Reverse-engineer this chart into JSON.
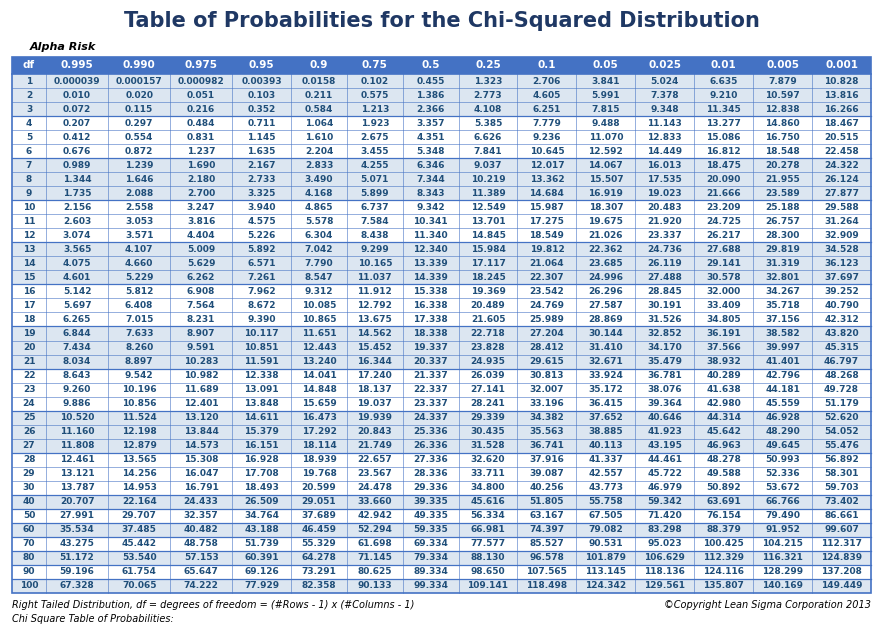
{
  "title": "Table of Probabilities for the Chi-Squared Distribution",
  "alpha_risk_label": "Alpha Risk",
  "headers": [
    "df",
    "0.995",
    "0.990",
    "0.975",
    "0.95",
    "0.9",
    "0.75",
    "0.5",
    "0.25",
    "0.1",
    "0.05",
    "0.025",
    "0.01",
    "0.005",
    "0.001"
  ],
  "rows": [
    [
      1,
      "0.000039",
      "0.000157",
      "0.000982",
      "0.00393",
      "0.0158",
      "0.102",
      "0.455",
      "1.323",
      "2.706",
      "3.841",
      "5.024",
      "6.635",
      "7.879",
      "10.828"
    ],
    [
      2,
      "0.010",
      "0.020",
      "0.051",
      "0.103",
      "0.211",
      "0.575",
      "1.386",
      "2.773",
      "4.605",
      "5.991",
      "7.378",
      "9.210",
      "10.597",
      "13.816"
    ],
    [
      3,
      "0.072",
      "0.115",
      "0.216",
      "0.352",
      "0.584",
      "1.213",
      "2.366",
      "4.108",
      "6.251",
      "7.815",
      "9.348",
      "11.345",
      "12.838",
      "16.266"
    ],
    [
      4,
      "0.207",
      "0.297",
      "0.484",
      "0.711",
      "1.064",
      "1.923",
      "3.357",
      "5.385",
      "7.779",
      "9.488",
      "11.143",
      "13.277",
      "14.860",
      "18.467"
    ],
    [
      5,
      "0.412",
      "0.554",
      "0.831",
      "1.145",
      "1.610",
      "2.675",
      "4.351",
      "6.626",
      "9.236",
      "11.070",
      "12.833",
      "15.086",
      "16.750",
      "20.515"
    ],
    [
      6,
      "0.676",
      "0.872",
      "1.237",
      "1.635",
      "2.204",
      "3.455",
      "5.348",
      "7.841",
      "10.645",
      "12.592",
      "14.449",
      "16.812",
      "18.548",
      "22.458"
    ],
    [
      7,
      "0.989",
      "1.239",
      "1.690",
      "2.167",
      "2.833",
      "4.255",
      "6.346",
      "9.037",
      "12.017",
      "14.067",
      "16.013",
      "18.475",
      "20.278",
      "24.322"
    ],
    [
      8,
      "1.344",
      "1.646",
      "2.180",
      "2.733",
      "3.490",
      "5.071",
      "7.344",
      "10.219",
      "13.362",
      "15.507",
      "17.535",
      "20.090",
      "21.955",
      "26.124"
    ],
    [
      9,
      "1.735",
      "2.088",
      "2.700",
      "3.325",
      "4.168",
      "5.899",
      "8.343",
      "11.389",
      "14.684",
      "16.919",
      "19.023",
      "21.666",
      "23.589",
      "27.877"
    ],
    [
      10,
      "2.156",
      "2.558",
      "3.247",
      "3.940",
      "4.865",
      "6.737",
      "9.342",
      "12.549",
      "15.987",
      "18.307",
      "20.483",
      "23.209",
      "25.188",
      "29.588"
    ],
    [
      11,
      "2.603",
      "3.053",
      "3.816",
      "4.575",
      "5.578",
      "7.584",
      "10.341",
      "13.701",
      "17.275",
      "19.675",
      "21.920",
      "24.725",
      "26.757",
      "31.264"
    ],
    [
      12,
      "3.074",
      "3.571",
      "4.404",
      "5.226",
      "6.304",
      "8.438",
      "11.340",
      "14.845",
      "18.549",
      "21.026",
      "23.337",
      "26.217",
      "28.300",
      "32.909"
    ],
    [
      13,
      "3.565",
      "4.107",
      "5.009",
      "5.892",
      "7.042",
      "9.299",
      "12.340",
      "15.984",
      "19.812",
      "22.362",
      "24.736",
      "27.688",
      "29.819",
      "34.528"
    ],
    [
      14,
      "4.075",
      "4.660",
      "5.629",
      "6.571",
      "7.790",
      "10.165",
      "13.339",
      "17.117",
      "21.064",
      "23.685",
      "26.119",
      "29.141",
      "31.319",
      "36.123"
    ],
    [
      15,
      "4.601",
      "5.229",
      "6.262",
      "7.261",
      "8.547",
      "11.037",
      "14.339",
      "18.245",
      "22.307",
      "24.996",
      "27.488",
      "30.578",
      "32.801",
      "37.697"
    ],
    [
      16,
      "5.142",
      "5.812",
      "6.908",
      "7.962",
      "9.312",
      "11.912",
      "15.338",
      "19.369",
      "23.542",
      "26.296",
      "28.845",
      "32.000",
      "34.267",
      "39.252"
    ],
    [
      17,
      "5.697",
      "6.408",
      "7.564",
      "8.672",
      "10.085",
      "12.792",
      "16.338",
      "20.489",
      "24.769",
      "27.587",
      "30.191",
      "33.409",
      "35.718",
      "40.790"
    ],
    [
      18,
      "6.265",
      "7.015",
      "8.231",
      "9.390",
      "10.865",
      "13.675",
      "17.338",
      "21.605",
      "25.989",
      "28.869",
      "31.526",
      "34.805",
      "37.156",
      "42.312"
    ],
    [
      19,
      "6.844",
      "7.633",
      "8.907",
      "10.117",
      "11.651",
      "14.562",
      "18.338",
      "22.718",
      "27.204",
      "30.144",
      "32.852",
      "36.191",
      "38.582",
      "43.820"
    ],
    [
      20,
      "7.434",
      "8.260",
      "9.591",
      "10.851",
      "12.443",
      "15.452",
      "19.337",
      "23.828",
      "28.412",
      "31.410",
      "34.170",
      "37.566",
      "39.997",
      "45.315"
    ],
    [
      21,
      "8.034",
      "8.897",
      "10.283",
      "11.591",
      "13.240",
      "16.344",
      "20.337",
      "24.935",
      "29.615",
      "32.671",
      "35.479",
      "38.932",
      "41.401",
      "46.797"
    ],
    [
      22,
      "8.643",
      "9.542",
      "10.982",
      "12.338",
      "14.041",
      "17.240",
      "21.337",
      "26.039",
      "30.813",
      "33.924",
      "36.781",
      "40.289",
      "42.796",
      "48.268"
    ],
    [
      23,
      "9.260",
      "10.196",
      "11.689",
      "13.091",
      "14.848",
      "18.137",
      "22.337",
      "27.141",
      "32.007",
      "35.172",
      "38.076",
      "41.638",
      "44.181",
      "49.728"
    ],
    [
      24,
      "9.886",
      "10.856",
      "12.401",
      "13.848",
      "15.659",
      "19.037",
      "23.337",
      "28.241",
      "33.196",
      "36.415",
      "39.364",
      "42.980",
      "45.559",
      "51.179"
    ],
    [
      25,
      "10.520",
      "11.524",
      "13.120",
      "14.611",
      "16.473",
      "19.939",
      "24.337",
      "29.339",
      "34.382",
      "37.652",
      "40.646",
      "44.314",
      "46.928",
      "52.620"
    ],
    [
      26,
      "11.160",
      "12.198",
      "13.844",
      "15.379",
      "17.292",
      "20.843",
      "25.336",
      "30.435",
      "35.563",
      "38.885",
      "41.923",
      "45.642",
      "48.290",
      "54.052"
    ],
    [
      27,
      "11.808",
      "12.879",
      "14.573",
      "16.151",
      "18.114",
      "21.749",
      "26.336",
      "31.528",
      "36.741",
      "40.113",
      "43.195",
      "46.963",
      "49.645",
      "55.476"
    ],
    [
      28,
      "12.461",
      "13.565",
      "15.308",
      "16.928",
      "18.939",
      "22.657",
      "27.336",
      "32.620",
      "37.916",
      "41.337",
      "44.461",
      "48.278",
      "50.993",
      "56.892"
    ],
    [
      29,
      "13.121",
      "14.256",
      "16.047",
      "17.708",
      "19.768",
      "23.567",
      "28.336",
      "33.711",
      "39.087",
      "42.557",
      "45.722",
      "49.588",
      "52.336",
      "58.301"
    ],
    [
      30,
      "13.787",
      "14.953",
      "16.791",
      "18.493",
      "20.599",
      "24.478",
      "29.336",
      "34.800",
      "40.256",
      "43.773",
      "46.979",
      "50.892",
      "53.672",
      "59.703"
    ],
    [
      40,
      "20.707",
      "22.164",
      "24.433",
      "26.509",
      "29.051",
      "33.660",
      "39.335",
      "45.616",
      "51.805",
      "55.758",
      "59.342",
      "63.691",
      "66.766",
      "73.402"
    ],
    [
      50,
      "27.991",
      "29.707",
      "32.357",
      "34.764",
      "37.689",
      "42.942",
      "49.335",
      "56.334",
      "63.167",
      "67.505",
      "71.420",
      "76.154",
      "79.490",
      "86.661"
    ],
    [
      60,
      "35.534",
      "37.485",
      "40.482",
      "43.188",
      "46.459",
      "52.294",
      "59.335",
      "66.981",
      "74.397",
      "79.082",
      "83.298",
      "88.379",
      "91.952",
      "99.607"
    ],
    [
      70,
      "43.275",
      "45.442",
      "48.758",
      "51.739",
      "55.329",
      "61.698",
      "69.334",
      "77.577",
      "85.527",
      "90.531",
      "95.023",
      "100.425",
      "104.215",
      "112.317"
    ],
    [
      80,
      "51.172",
      "53.540",
      "57.153",
      "60.391",
      "64.278",
      "71.145",
      "79.334",
      "88.130",
      "96.578",
      "101.879",
      "106.629",
      "112.329",
      "116.321",
      "124.839"
    ],
    [
      90,
      "59.196",
      "61.754",
      "65.647",
      "69.126",
      "73.291",
      "80.625",
      "89.334",
      "98.650",
      "107.565",
      "113.145",
      "118.136",
      "124.116",
      "128.299",
      "137.208"
    ],
    [
      100,
      "67.328",
      "70.065",
      "74.222",
      "77.929",
      "82.358",
      "90.133",
      "99.334",
      "109.141",
      "118.498",
      "124.342",
      "129.561",
      "135.807",
      "140.169",
      "149.449"
    ]
  ],
  "footer_left": "Right Tailed Distribution, df = degrees of freedom = (#Rows - 1) x (#Columns - 1)",
  "footer_right": "©Copyright Lean Sigma Corporation 2013",
  "footer_bottom": "Chi Square Table of Probabilities:",
  "bg_color": "#ffffff",
  "header_bg": "#4472c4",
  "header_text_color": "#ffffff",
  "odd_row_bg": "#dce6f1",
  "even_row_bg": "#ffffff",
  "border_color": "#4472c4",
  "text_color_blue": "#1f4e79",
  "title_color": "#1f3864"
}
